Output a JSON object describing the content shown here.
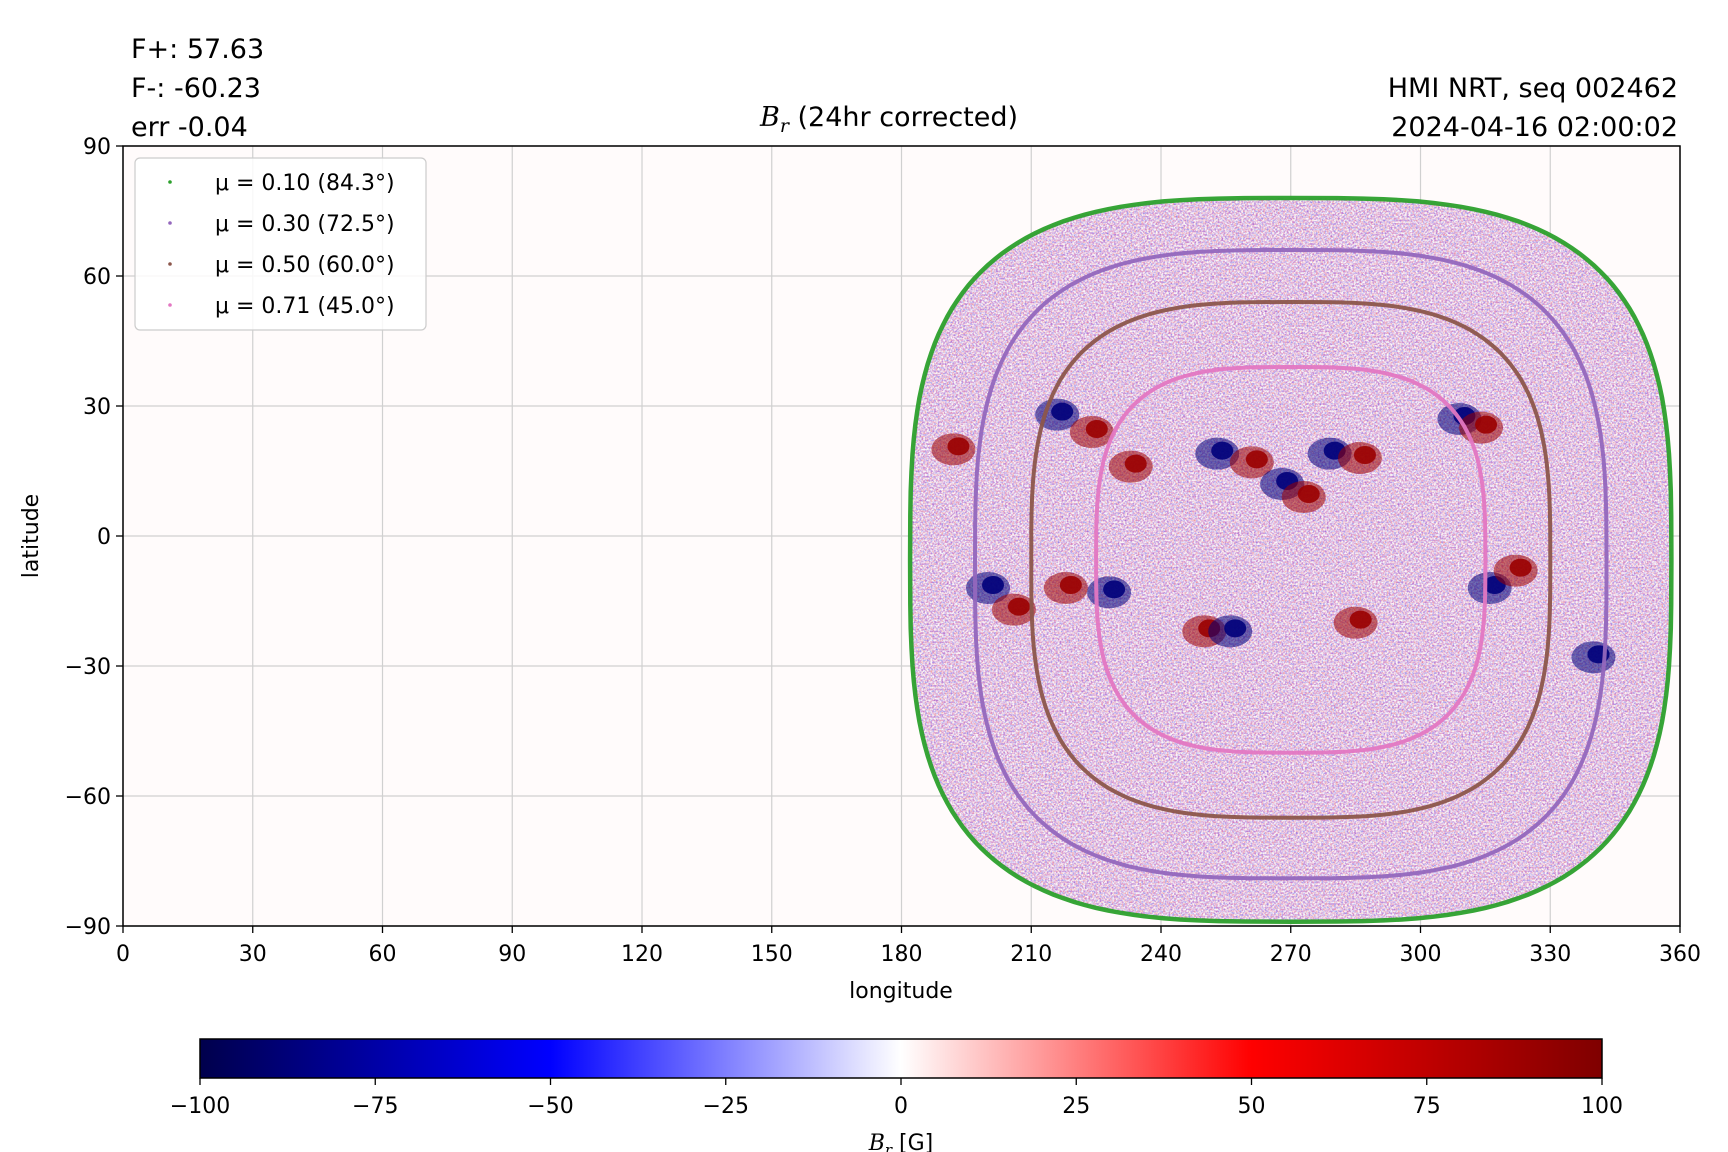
{
  "annotations": {
    "flux_pos": "F+: 57.63",
    "flux_neg": "F-: -60.23",
    "error": "err -0.04",
    "instrument": "HMI NRT, seq 002462",
    "timestamp": "2024-04-16 02:00:02"
  },
  "chart_data": {
    "type": "heatmap",
    "title_symbol": "B",
    "title_subscript": "r",
    "title_rest": " (24hr corrected)",
    "xlabel": "longitude",
    "ylabel": "latitude",
    "xlim": [
      0,
      360
    ],
    "ylim": [
      -90,
      90
    ],
    "xticks": [
      "0",
      "30",
      "60",
      "90",
      "120",
      "150",
      "180",
      "210",
      "240",
      "270",
      "300",
      "330",
      "360"
    ],
    "yticks": [
      "90",
      "60",
      "30",
      "0",
      "−30",
      "−60",
      "−90"
    ],
    "grid": true,
    "legend_placement": "top-left",
    "disk_center_lon": 270,
    "disk_center_lat": -5,
    "series": [
      {
        "name": "μ = 0.10 (84.3°)",
        "mu": 0.1,
        "angle_deg": 84.3,
        "color": "#2ca02c",
        "lon_range": [
          182,
          358
        ],
        "lat_range": [
          -89,
          78
        ]
      },
      {
        "name": "μ = 0.30 (72.5°)",
        "mu": 0.3,
        "angle_deg": 72.5,
        "color": "#9467bd",
        "lon_range": [
          197,
          343
        ],
        "lat_range": [
          -79,
          66
        ]
      },
      {
        "name": "μ = 0.50 (60.0°)",
        "mu": 0.5,
        "angle_deg": 60.0,
        "color": "#8c564b",
        "lon_range": [
          210,
          330
        ],
        "lat_range": [
          -65,
          54
        ]
      },
      {
        "name": "μ = 0.71 (45.0°)",
        "mu": 0.71,
        "angle_deg": 45.0,
        "color": "#e377c2",
        "lon_range": [
          225,
          315
        ],
        "lat_range": [
          -50,
          39
        ]
      }
    ],
    "active_regions": [
      {
        "lon": 216,
        "lat": 28,
        "polarity": -1
      },
      {
        "lon": 224,
        "lat": 24,
        "polarity": 1
      },
      {
        "lon": 233,
        "lat": 16,
        "polarity": 1
      },
      {
        "lon": 253,
        "lat": 19,
        "polarity": -1
      },
      {
        "lon": 261,
        "lat": 17,
        "polarity": 1
      },
      {
        "lon": 279,
        "lat": 19,
        "polarity": -1
      },
      {
        "lon": 286,
        "lat": 18,
        "polarity": 1
      },
      {
        "lon": 268,
        "lat": 12,
        "polarity": -1
      },
      {
        "lon": 273,
        "lat": 9,
        "polarity": 1
      },
      {
        "lon": 309,
        "lat": 27,
        "polarity": -1
      },
      {
        "lon": 314,
        "lat": 25,
        "polarity": 1
      },
      {
        "lon": 200,
        "lat": -12,
        "polarity": -1
      },
      {
        "lon": 206,
        "lat": -17,
        "polarity": 1
      },
      {
        "lon": 218,
        "lat": -12,
        "polarity": 1
      },
      {
        "lon": 228,
        "lat": -13,
        "polarity": -1
      },
      {
        "lon": 250,
        "lat": -22,
        "polarity": 1
      },
      {
        "lon": 256,
        "lat": -22,
        "polarity": -1
      },
      {
        "lon": 285,
        "lat": -20,
        "polarity": 1
      },
      {
        "lon": 316,
        "lat": -12,
        "polarity": -1
      },
      {
        "lon": 322,
        "lat": -8,
        "polarity": 1
      },
      {
        "lon": 340,
        "lat": -28,
        "polarity": -1
      },
      {
        "lon": 192,
        "lat": 20,
        "polarity": 1
      }
    ],
    "colorbar": {
      "label_symbol": "B",
      "label_subscript": "r",
      "label_unit": " [G]",
      "range": [
        -100,
        100
      ],
      "ticks": [
        "−100",
        "−75",
        "−50",
        "−25",
        "0",
        "25",
        "50",
        "75",
        "100"
      ],
      "colormap": "seismic"
    }
  }
}
